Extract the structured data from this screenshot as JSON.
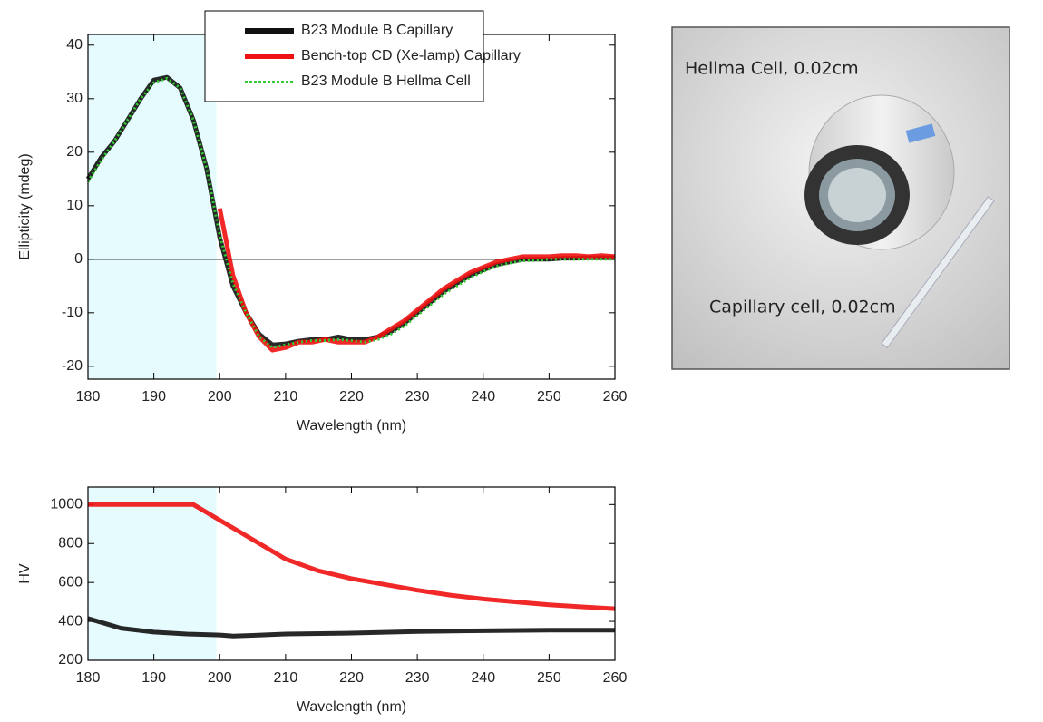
{
  "chart_data": [
    {
      "type": "line",
      "xlabel": "Wavelength (nm)",
      "ylabel": "Ellipticity (mdeg)",
      "xlim": [
        180,
        260
      ],
      "xticks": [
        180,
        190,
        200,
        210,
        220,
        230,
        240,
        250,
        260
      ],
      "ylim": [
        -22.4,
        42
      ],
      "yticks": [
        -20,
        -10,
        0,
        10,
        20,
        30,
        40
      ],
      "zero_line": true,
      "highlight_xrange": [
        180,
        199.5
      ],
      "highlight_color": "#e6fbfd",
      "legend": "upper-center",
      "series": [
        {
          "name": "B23  Module B Capillary",
          "color": "#111111",
          "style": "solid",
          "x": [
            180,
            182,
            184,
            186,
            188,
            190,
            192,
            194,
            196,
            198,
            200,
            202,
            204,
            206,
            208,
            210,
            212,
            214,
            216,
            218,
            220,
            222,
            224,
            226,
            228,
            230,
            232,
            234,
            236,
            238,
            240,
            242,
            244,
            246,
            248,
            250,
            252,
            254,
            256,
            258,
            260
          ],
          "values": [
            15,
            19,
            22,
            26,
            30,
            33.5,
            34,
            32,
            26,
            17,
            4,
            -5,
            -10,
            -14,
            -16,
            -15.8,
            -15.3,
            -15,
            -15,
            -14.5,
            -15,
            -15,
            -14.5,
            -13.5,
            -12,
            -10,
            -8,
            -6,
            -4.5,
            -3,
            -2,
            -1,
            -0.5,
            0,
            0,
            0,
            0.2,
            0.2,
            0.3,
            0.3,
            0.3
          ]
        },
        {
          "name": "Bench-top CD (Xe-lamp) Capillary",
          "color": "#ee1111",
          "style": "solid",
          "x": [
            200,
            202,
            204,
            206,
            208,
            210,
            212,
            214,
            216,
            218,
            220,
            222,
            224,
            226,
            228,
            230,
            232,
            234,
            236,
            238,
            240,
            242,
            244,
            246,
            248,
            250,
            252,
            254,
            256,
            258,
            260
          ],
          "values": [
            9.5,
            -3,
            -10,
            -14.5,
            -17,
            -16.5,
            -15.5,
            -15.5,
            -15,
            -15.5,
            -15.5,
            -15.5,
            -14.5,
            -13,
            -11.5,
            -9.5,
            -7.5,
            -5.5,
            -4,
            -2.5,
            -1.5,
            -0.5,
            0,
            0.5,
            0.5,
            0.5,
            0.7,
            0.7,
            0.5,
            0.7,
            0.5
          ]
        },
        {
          "name": "B23 Module B Hellma Cell",
          "color": "#33cc33",
          "style": "dotted",
          "x": [
            180,
            182,
            184,
            186,
            188,
            190,
            192,
            194,
            196,
            198,
            200,
            202,
            204,
            206,
            208,
            210,
            212,
            214,
            216,
            218,
            220,
            222,
            224,
            226,
            228,
            230,
            232,
            234,
            236,
            238,
            240,
            242,
            244,
            246,
            248,
            250,
            252,
            254,
            256,
            258,
            260
          ],
          "values": [
            14.5,
            18.5,
            22,
            26,
            30,
            33,
            33.8,
            32,
            26,
            17,
            4.5,
            -4.5,
            -10,
            -14.5,
            -16.5,
            -16,
            -15.5,
            -15.2,
            -15.2,
            -15,
            -15.2,
            -15.5,
            -15,
            -14,
            -12.5,
            -10.5,
            -8.5,
            -6.5,
            -5,
            -3.5,
            -2.3,
            -1.3,
            -0.7,
            -0.3,
            -0.2,
            0,
            0,
            0,
            0,
            0,
            0
          ]
        }
      ]
    },
    {
      "type": "line",
      "xlabel": "Wavelength (nm)",
      "ylabel": "HV",
      "xlim": [
        180,
        260
      ],
      "xticks": [
        180,
        190,
        200,
        210,
        220,
        230,
        240,
        250,
        260
      ],
      "ylim": [
        200,
        1090
      ],
      "yticks": [
        200,
        400,
        600,
        800,
        1000
      ],
      "highlight_xrange": [
        180,
        199.5
      ],
      "highlight_color": "#e6fbfd",
      "series": [
        {
          "color": "#ee1111",
          "style": "solid",
          "x": [
            180,
            196,
            200,
            205,
            210,
            215,
            220,
            225,
            230,
            235,
            240,
            245,
            250,
            255,
            260
          ],
          "values": [
            1000,
            1000,
            920,
            820,
            720,
            660,
            620,
            590,
            560,
            535,
            515,
            500,
            485,
            475,
            465
          ]
        },
        {
          "color": "#111111",
          "style": "solid",
          "x": [
            180,
            185,
            190,
            195,
            200,
            202,
            205,
            210,
            220,
            230,
            240,
            250,
            260
          ],
          "values": [
            415,
            365,
            345,
            335,
            330,
            325,
            328,
            335,
            340,
            348,
            352,
            355,
            355
          ]
        }
      ]
    }
  ],
  "photo": {
    "labels": [
      "Hellma Cell, 0.02cm",
      "Capillary cell, 0.02cm"
    ]
  }
}
